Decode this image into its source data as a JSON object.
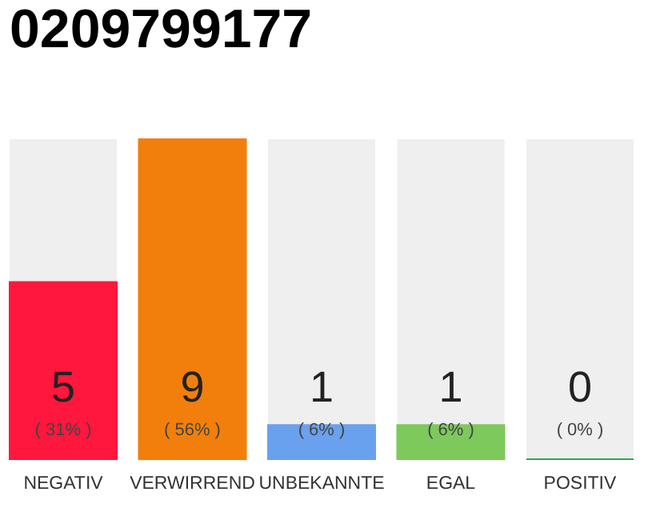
{
  "chart_data": {
    "type": "bar",
    "title": "0209799177",
    "categories": [
      "NEGATIV",
      "VERWIRREND",
      "UNBEKANNTE",
      "EGAL",
      "POSITIV"
    ],
    "values": [
      31,
      56,
      6,
      6,
      0
    ],
    "colors": [
      "#ff173d",
      "#f27f0c",
      "#6aa1ee",
      "#7ec95c",
      "#2aa84a"
    ],
    "value_labels": [
      "( 31% )",
      "( 56% )",
      "( 6% )",
      "( 6% )",
      "( 0% )"
    ],
    "annotations": [
      "5",
      "9",
      "1",
      "1",
      "0"
    ],
    "tick_labels": "x",
    "grid": false
  }
}
